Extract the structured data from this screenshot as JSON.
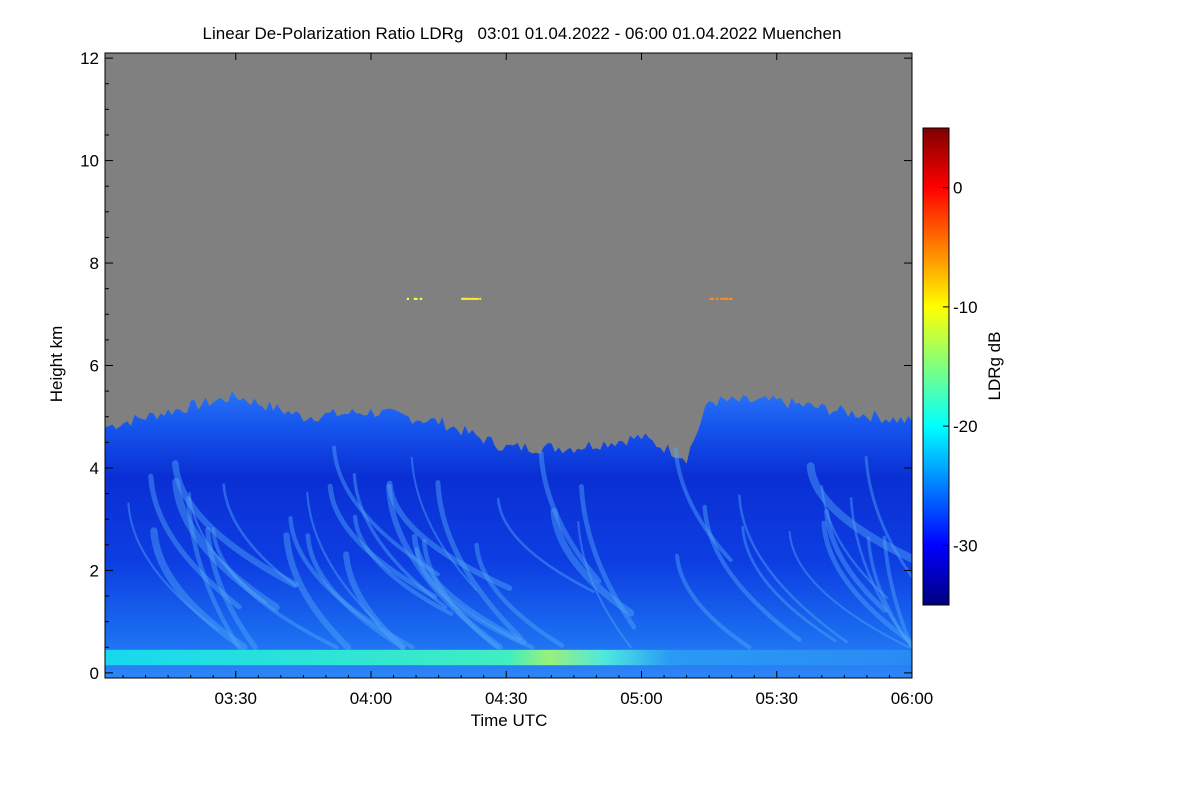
{
  "chart_data": {
    "type": "heatmap",
    "title": "Linear De-Polarization Ratio LDRg   03:01 01.04.2022 - 06:00 01.04.2022 Muenchen",
    "xlabel": "Time UTC",
    "ylabel": "Height km",
    "xlim": [
      "03:01",
      "06:00"
    ],
    "ylim": [
      -0.1,
      12.1
    ],
    "x_ticks": [
      "03:30",
      "04:00",
      "04:30",
      "05:00",
      "05:30",
      "06:00"
    ],
    "y_ticks": [
      "0",
      "2",
      "4",
      "6",
      "8",
      "10",
      "12"
    ],
    "colorbar": {
      "label": "LDRg dB",
      "range": [
        -35,
        5
      ],
      "ticks": [
        "0",
        "-10",
        "-20",
        "-30"
      ],
      "colormap": "jet"
    },
    "no_signal_color": "#808080",
    "cloud_top_km": [
      {
        "time": "03:01",
        "height": 4.8
      },
      {
        "time": "03:15",
        "height": 5.1
      },
      {
        "time": "03:30",
        "height": 5.4
      },
      {
        "time": "03:45",
        "height": 5.0
      },
      {
        "time": "04:00",
        "height": 5.1
      },
      {
        "time": "04:15",
        "height": 4.9
      },
      {
        "time": "04:30",
        "height": 4.4
      },
      {
        "time": "04:45",
        "height": 4.4
      },
      {
        "time": "05:00",
        "height": 4.6
      },
      {
        "time": "05:10",
        "height": 4.2
      },
      {
        "time": "05:15",
        "height": 5.3
      },
      {
        "time": "05:30",
        "height": 5.3
      },
      {
        "time": "05:45",
        "height": 5.1
      },
      {
        "time": "06:00",
        "height": 4.9
      }
    ],
    "features": [
      {
        "type": "near_surface_layer",
        "height": 0.3,
        "ldr_db": -20
      },
      {
        "type": "high_speckles",
        "height": 7.3,
        "ldr_db": -5
      }
    ]
  }
}
